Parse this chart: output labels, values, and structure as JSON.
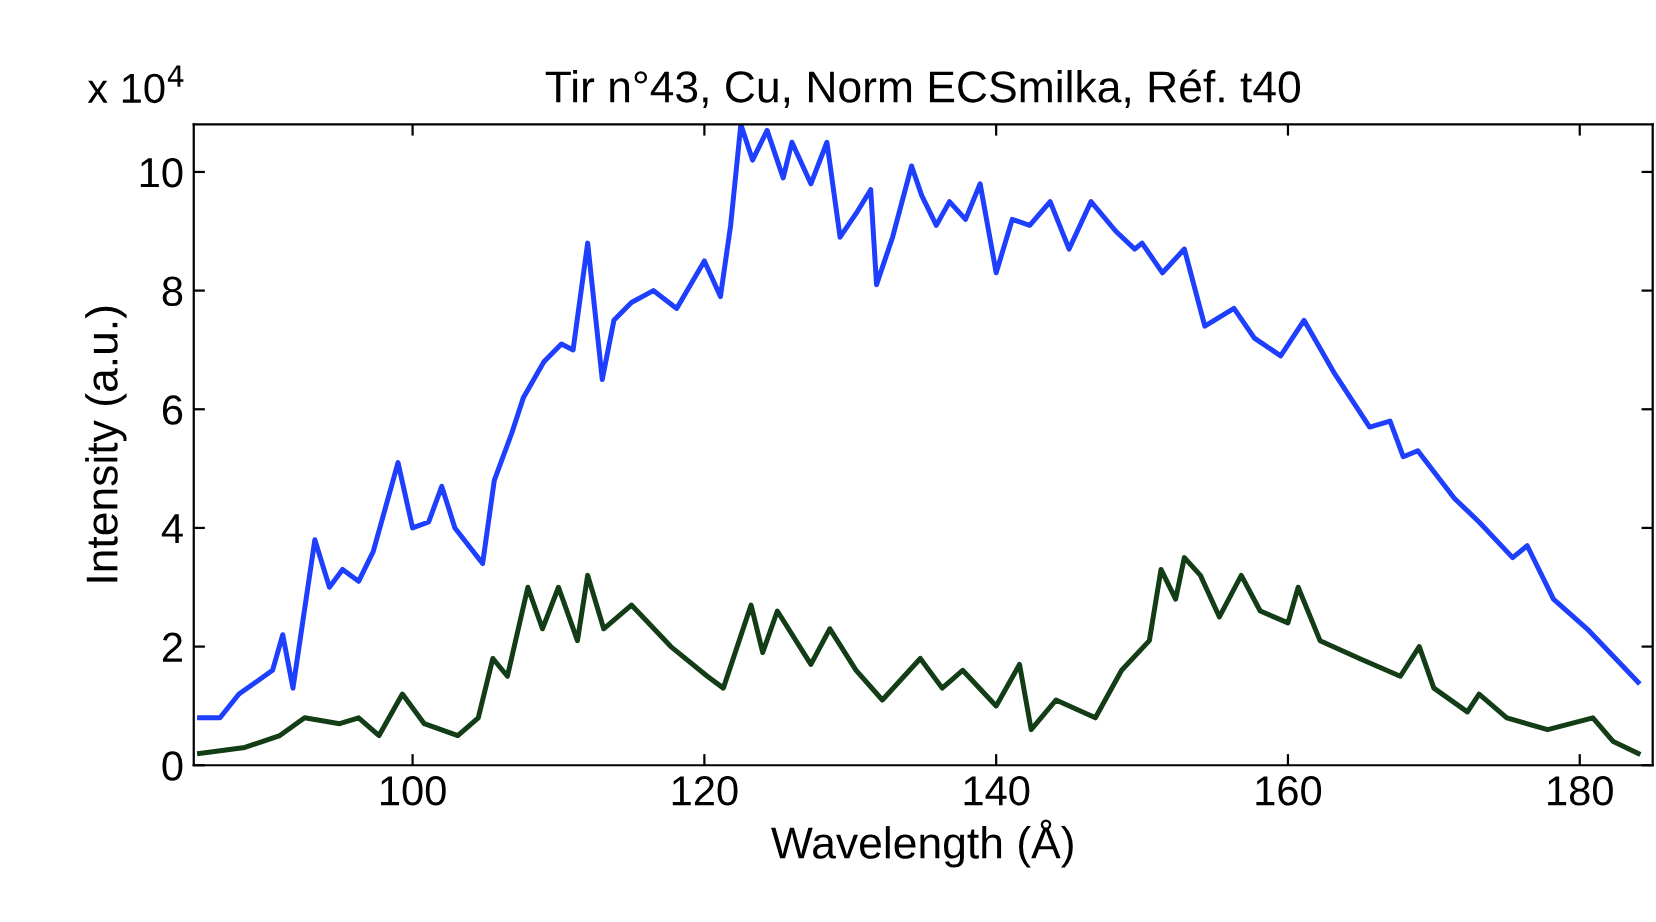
{
  "chart_data": {
    "type": "line",
    "title": "Tir n°43, Cu, Norm ECSmilka, Réf. t40",
    "xlabel": "Wavelength (Å)",
    "ylabel": "Intensity (a.u.)",
    "annotations": [
      "x 10$^{4}$"
    ],
    "xlim": [
      85,
      185
    ],
    "ylim": [
      0,
      10.8
    ],
    "xticks": [
      100,
      120,
      140,
      160,
      180
    ],
    "yticks": [
      0,
      2,
      4,
      6,
      8,
      10
    ],
    "grid": false,
    "legend": false,
    "line_style": "solid",
    "marker": "none",
    "series": [
      {
        "color": "#1f3fff",
        "x": [
          85.4,
          86.8,
          88.1,
          90.4,
          91.1,
          91.8,
          93.3,
          94.3,
          95.2,
          96.3,
          97.3,
          99,
          100,
          101.1,
          102,
          102.9,
          104.8,
          105.6,
          106.8,
          107.6,
          109,
          110.2,
          111,
          112,
          113,
          113.8,
          115,
          116.5,
          118.1,
          120,
          121.1,
          121.8,
          122.5,
          123.3,
          124.3,
          125.4,
          126,
          127.3,
          128.4,
          129.3,
          130.4,
          131.4,
          131.8,
          132.9,
          134.2,
          134.9,
          135.9,
          136.8,
          137.9,
          138.9,
          140,
          141.1,
          142.3,
          143.7,
          145,
          146.5,
          148.2,
          149.5,
          150,
          151.4,
          152.9,
          154.3,
          156.3,
          157.7,
          159.5,
          161.1,
          163.2,
          165.6,
          167,
          167.9,
          168.9,
          171.4,
          173.1,
          175.4,
          176.4,
          178.2,
          180.5,
          184
        ],
        "values": [
          0.8,
          0.8,
          1.2,
          1.6,
          2.2,
          1.3,
          3.8,
          3.0,
          3.3,
          3.1,
          3.6,
          5.1,
          4.0,
          4.1,
          4.7,
          4.0,
          3.4,
          4.8,
          5.6,
          6.2,
          6.8,
          7.1,
          7.0,
          8.8,
          6.5,
          7.5,
          7.8,
          8.0,
          7.7,
          8.5,
          7.9,
          9.1,
          10.8,
          10.2,
          10.7,
          9.9,
          10.5,
          9.8,
          10.5,
          8.9,
          9.3,
          9.7,
          8.1,
          8.9,
          10.1,
          9.6,
          9.1,
          9.5,
          9.2,
          9.8,
          8.3,
          9.2,
          9.1,
          9.5,
          8.7,
          9.5,
          9.0,
          8.7,
          8.8,
          8.3,
          8.7,
          7.4,
          7.7,
          7.2,
          6.9,
          7.5,
          6.6,
          5.7,
          5.8,
          5.2,
          5.3,
          4.5,
          4.1,
          3.5,
          3.7,
          2.8,
          2.3,
          1.4
        ]
      },
      {
        "color": "#123d16",
        "x": [
          85.4,
          88.5,
          90.9,
          92.6,
          95,
          96.3,
          97.7,
          99.3,
          100.8,
          103.1,
          104.5,
          105.5,
          106.5,
          107.9,
          108.9,
          110,
          111.3,
          112,
          113.1,
          115,
          117.7,
          120.2,
          121.3,
          123.2,
          124,
          125,
          127.3,
          128.6,
          130.4,
          132.2,
          134.8,
          136.3,
          137.7,
          140,
          141.6,
          142.4,
          144.1,
          146.8,
          148.6,
          150.5,
          151.3,
          152.3,
          152.9,
          154,
          155.3,
          156.8,
          158.1,
          160,
          160.7,
          162.2,
          164.9,
          167.7,
          169,
          170,
          172.3,
          173.1,
          175,
          177.8,
          180.9,
          182.3,
          184
        ],
        "values": [
          0.2,
          0.3,
          0.5,
          0.8,
          0.7,
          0.8,
          0.5,
          1.2,
          0.7,
          0.5,
          0.8,
          1.8,
          1.5,
          3.0,
          2.3,
          3.0,
          2.1,
          3.2,
          2.3,
          2.7,
          2.0,
          1.5,
          1.3,
          2.7,
          1.9,
          2.6,
          1.7,
          2.3,
          1.6,
          1.1,
          1.8,
          1.3,
          1.6,
          1.0,
          1.7,
          0.6,
          1.1,
          0.8,
          1.6,
          2.1,
          3.3,
          2.8,
          3.5,
          3.2,
          2.5,
          3.2,
          2.6,
          2.4,
          3.0,
          2.1,
          1.8,
          1.5,
          2.0,
          1.3,
          0.9,
          1.2,
          0.8,
          0.6,
          0.8,
          0.4,
          0.2
        ]
      }
    ]
  }
}
